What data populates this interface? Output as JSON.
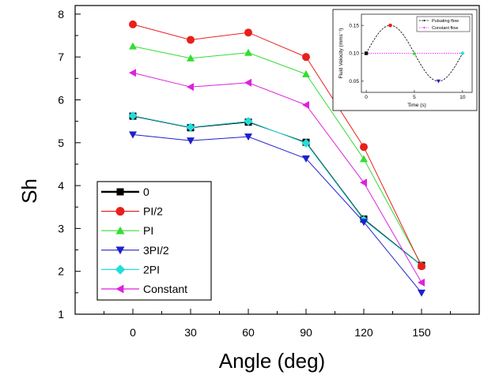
{
  "chart_data": [
    {
      "type": "line",
      "title": "",
      "xlabel": "Angle (deg)",
      "ylabel": "Sh",
      "x": [
        0,
        30,
        60,
        90,
        120,
        150
      ],
      "xticks": [
        0,
        30,
        60,
        90,
        120,
        150
      ],
      "yticks": [
        1,
        2,
        3,
        4,
        5,
        6,
        7,
        8
      ],
      "xlim": [
        -30,
        180
      ],
      "ylim": [
        1,
        8.2
      ],
      "grid": false,
      "legend_position": "bottom-left",
      "series": [
        {
          "name": "0",
          "color": "#000000",
          "marker": "square",
          "values": [
            5.62,
            5.35,
            5.48,
            5.01,
            3.22,
            2.14
          ]
        },
        {
          "name": "PI/2",
          "color": "#e8201c",
          "marker": "circle",
          "values": [
            7.76,
            7.4,
            7.57,
            7.0,
            4.9,
            2.12
          ]
        },
        {
          "name": "PI",
          "color": "#33dd33",
          "marker": "triangle-up",
          "values": [
            7.25,
            6.97,
            7.1,
            6.6,
            4.62,
            2.15
          ]
        },
        {
          "name": "3PI/2",
          "color": "#1f1fcc",
          "marker": "triangle-down",
          "values": [
            5.19,
            5.05,
            5.14,
            4.63,
            3.15,
            1.5
          ]
        },
        {
          "name": "2PI",
          "color": "#22dddd",
          "marker": "diamond",
          "values": [
            5.63,
            5.36,
            5.5,
            4.99,
            3.2,
            2.13
          ]
        },
        {
          "name": "Constant",
          "color": "#dd22dd",
          "marker": "triangle-left",
          "values": [
            6.63,
            6.3,
            6.4,
            5.88,
            4.07,
            1.74
          ]
        }
      ]
    },
    {
      "type": "line",
      "title": "",
      "xlabel": "Time (s)",
      "ylabel": "Fluid Velocity (mms⁻¹)",
      "xticks": [
        0,
        5,
        10
      ],
      "yticks": [
        "0.05",
        "0.10",
        "0.15"
      ],
      "xlim": [
        -0.5,
        11
      ],
      "ylim": [
        0.03,
        0.17
      ],
      "legend_position": "top-right",
      "series": [
        {
          "name": "Pulsating flow",
          "color": "#000000",
          "style": "dashed",
          "function": "0.10 + 0.05*sin(2*pi*t/10)",
          "x": [
            0,
            2.5,
            5,
            7.5,
            10
          ],
          "values": [
            0.1,
            0.15,
            0.1,
            0.05,
            0.1
          ]
        },
        {
          "name": "Constant flow",
          "color": "#ff00ff",
          "style": "dotted",
          "x": [
            0,
            10
          ],
          "values": [
            0.1,
            0.1
          ]
        }
      ]
    }
  ]
}
